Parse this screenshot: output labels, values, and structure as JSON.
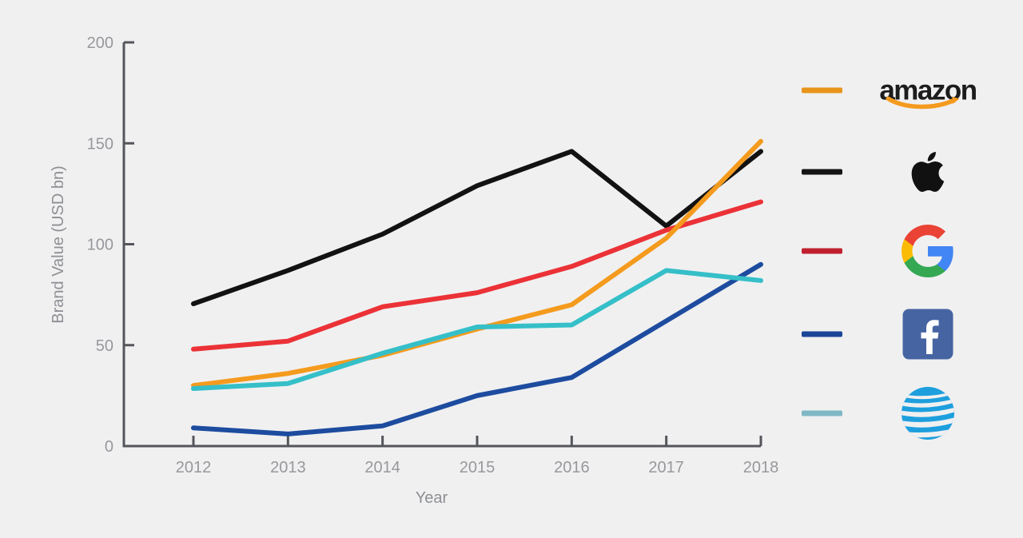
{
  "page": {
    "background": "#F0F0F1",
    "description": "Line chart of brand value by year for five technology brands"
  },
  "axis": {
    "color": "#55565B",
    "tick_label_color": "#97989C",
    "label_color": "#8E8F94"
  },
  "chart_data": {
    "type": "line",
    "title": "",
    "xlabel": "Year",
    "ylabel": "Brand Value (USD bn)",
    "x": [
      2012,
      2013,
      2014,
      2015,
      2016,
      2017,
      2018
    ],
    "x_tick_labels": [
      "2012",
      "2013",
      "2014",
      "2015",
      "2016",
      "2017",
      "2018"
    ],
    "ylim": [
      0,
      200
    ],
    "yticks": [
      0,
      50,
      100,
      150,
      200
    ],
    "y_tick_labels": [
      "0",
      "50",
      "100",
      "150",
      "200"
    ],
    "grid": false,
    "legend_position": "right",
    "series": [
      {
        "name": "Amazon",
        "color": "#F49B1E",
        "values": [
          30,
          36,
          45,
          58,
          70,
          103,
          151
        ]
      },
      {
        "name": "Apple",
        "color": "#121212",
        "values": [
          70.5,
          87,
          105,
          129,
          146,
          109,
          146
        ]
      },
      {
        "name": "Google",
        "color": "#EB3237",
        "values": [
          48,
          52,
          69,
          76,
          89,
          107,
          121
        ]
      },
      {
        "name": "Facebook",
        "color": "#1D4C9F",
        "values": [
          9,
          6,
          10,
          25,
          34,
          62,
          90
        ]
      },
      {
        "name": "AT&T",
        "color": "#35BFC8",
        "values": [
          28.5,
          31,
          46,
          59,
          60,
          87,
          82
        ]
      }
    ]
  },
  "legend": {
    "items": [
      {
        "name": "Amazon",
        "swatch_color": "#E8951C",
        "logo": "amazon-wordmark-icon",
        "wordmark": "amazon"
      },
      {
        "name": "Apple",
        "swatch_color": "#141414",
        "logo": "apple-icon"
      },
      {
        "name": "Google",
        "swatch_color": "#C0202E",
        "logo": "google-g-icon"
      },
      {
        "name": "Facebook",
        "swatch_color": "#1B4596",
        "logo": "facebook-icon"
      },
      {
        "name": "AT&T",
        "swatch_color": "#7FB8C4",
        "logo": "att-globe-icon"
      }
    ]
  }
}
